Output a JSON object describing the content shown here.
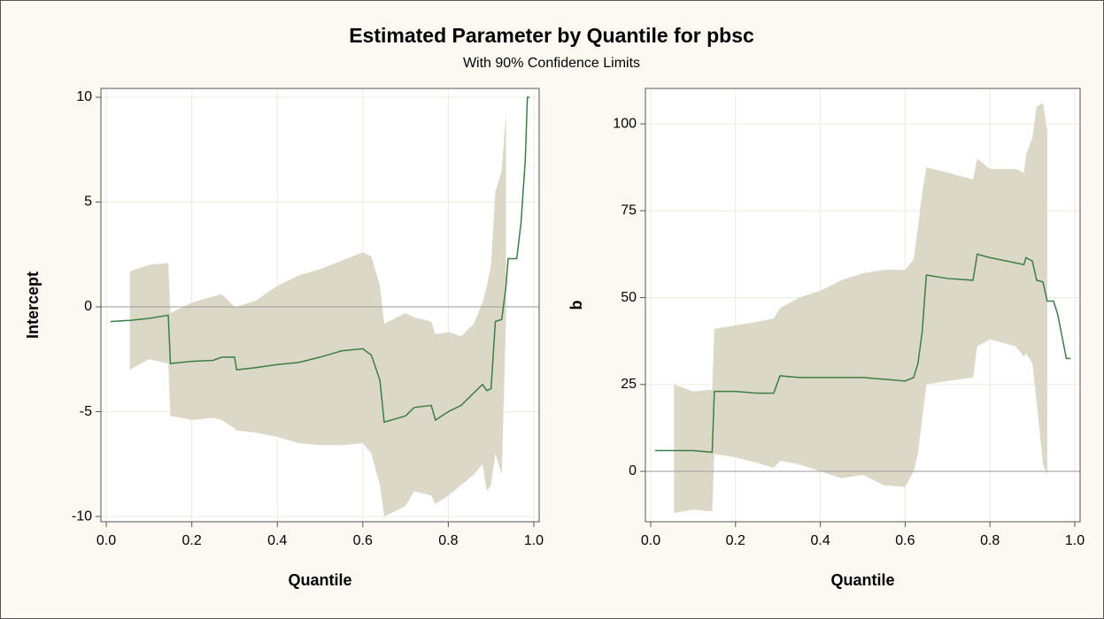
{
  "title": "Estimated Parameter by Quantile for pbsc",
  "subtitle": "With 90% Confidence Limits",
  "chart_data": [
    {
      "type": "line",
      "xlabel": "Quantile",
      "ylabel": "Intercept",
      "x": [
        0.01,
        0.05,
        0.055,
        0.1,
        0.145,
        0.15,
        0.2,
        0.25,
        0.27,
        0.3,
        0.305,
        0.35,
        0.4,
        0.45,
        0.5,
        0.55,
        0.6,
        0.62,
        0.64,
        0.65,
        0.7,
        0.72,
        0.76,
        0.77,
        0.8,
        0.83,
        0.86,
        0.88,
        0.89,
        0.9,
        0.91,
        0.925,
        0.935,
        0.94,
        0.96,
        0.97,
        0.98,
        0.985,
        0.99
      ],
      "values": [
        -0.7,
        -0.65,
        -0.65,
        -0.55,
        -0.4,
        -2.7,
        -2.6,
        -2.55,
        -2.4,
        -2.4,
        -3.0,
        -2.9,
        -2.75,
        -2.65,
        -2.4,
        -2.1,
        -2.0,
        -2.3,
        -3.5,
        -5.5,
        -5.2,
        -4.8,
        -4.7,
        -5.4,
        -5.0,
        -4.7,
        -4.1,
        -3.7,
        -4.0,
        -3.9,
        -0.7,
        -0.6,
        1.0,
        2.3,
        2.3,
        4.0,
        7.0,
        10,
        10
      ],
      "upper": [
        null,
        null,
        1.7,
        2.0,
        2.1,
        -0.3,
        0.2,
        0.5,
        0.6,
        0.0,
        0.0,
        0.3,
        1.0,
        1.5,
        1.8,
        2.2,
        2.6,
        2.4,
        1.0,
        -0.8,
        -0.3,
        -0.5,
        -0.7,
        -1.3,
        -1.2,
        -1.4,
        -0.8,
        0.2,
        1.0,
        2.0,
        5.5,
        6.5,
        9.3,
        null,
        null,
        null,
        null,
        null,
        null
      ],
      "lower": [
        null,
        null,
        -3.0,
        -2.5,
        -2.7,
        -5.2,
        -5.4,
        -5.3,
        -5.4,
        -5.8,
        -5.9,
        -6.0,
        -6.2,
        -6.5,
        -6.6,
        -6.6,
        -6.5,
        -7.0,
        -8.5,
        -10.0,
        -9.5,
        -8.8,
        -9.0,
        -9.4,
        -9.0,
        -8.5,
        -8.0,
        -7.5,
        -8.8,
        -8.5,
        -7.0,
        -8.0,
        -0.5,
        null,
        null,
        null,
        null,
        null,
        null
      ],
      "color": "#3d7d46",
      "band_color": "#dcd8c7",
      "refline": 0,
      "grid": true,
      "xlim": [
        -0.0125,
        1.0125
      ],
      "ylim": [
        -10.25,
        10.42
      ],
      "xticks": [
        {
          "value": 0,
          "label": "0.0"
        },
        0.2,
        0.4,
        0.6,
        0.8,
        {
          "value": 1,
          "label": "1.0"
        }
      ],
      "yticks": [
        -10,
        -5,
        0,
        5,
        10
      ]
    },
    {
      "type": "line",
      "xlabel": "Quantile",
      "ylabel": "b",
      "x": [
        0.01,
        0.055,
        0.1,
        0.145,
        0.15,
        0.2,
        0.25,
        0.29,
        0.305,
        0.35,
        0.4,
        0.45,
        0.5,
        0.55,
        0.6,
        0.62,
        0.63,
        0.64,
        0.65,
        0.7,
        0.76,
        0.77,
        0.8,
        0.86,
        0.88,
        0.885,
        0.9,
        0.91,
        0.925,
        0.935,
        0.95,
        0.96,
        0.98,
        0.99
      ],
      "values": [
        6,
        6,
        6,
        5.5,
        23,
        23,
        22.5,
        22.5,
        27.5,
        27,
        27,
        27,
        27,
        26.5,
        26,
        27,
        31,
        40,
        56.5,
        55.5,
        55,
        62.5,
        61.5,
        60,
        59.5,
        61.5,
        60.5,
        55,
        54.5,
        49,
        49,
        45,
        32.5,
        32.5
      ],
      "upper": [
        null,
        25,
        23,
        23.5,
        41,
        42,
        43,
        44,
        47,
        50,
        52,
        55,
        57,
        58,
        58,
        61,
        70,
        80,
        87.5,
        86,
        84,
        90,
        87,
        87,
        86,
        91,
        96,
        105,
        106,
        98,
        null,
        null,
        null,
        null
      ],
      "lower": [
        null,
        -12,
        -11,
        -11.5,
        5,
        4,
        2.5,
        1,
        3,
        2,
        0,
        -2,
        -1,
        -4,
        -4.5,
        0,
        5,
        15,
        25,
        26,
        27,
        36,
        38,
        36,
        33,
        34,
        31,
        20,
        2,
        -1,
        null,
        null,
        null,
        null
      ],
      "color": "#3d7d46",
      "band_color": "#dcd8c7",
      "refline": 0,
      "grid": true,
      "xlim": [
        -0.0125,
        1.0125
      ],
      "ylim": [
        -14.5,
        110.2
      ],
      "xticks": [
        {
          "value": 0,
          "label": "0.0"
        },
        0.2,
        0.4,
        0.6,
        0.8,
        {
          "value": 1,
          "label": "1.0"
        }
      ],
      "yticks": [
        0,
        25,
        50,
        75,
        100
      ]
    }
  ]
}
